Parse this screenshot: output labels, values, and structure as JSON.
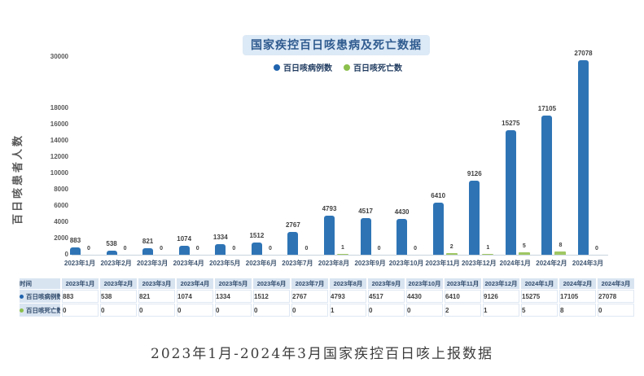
{
  "chart": {
    "title": "国家疾控百日咳患病及死亡数据",
    "y_axis_title": "百日咳患者人数",
    "legend": [
      {
        "label": "百日咳病例数",
        "color": "#1F63AE"
      },
      {
        "label": "百日咳死亡数",
        "color": "#8CC04D"
      }
    ]
  },
  "chart_data": {
    "type": "bar",
    "title": "国家疾控百日咳患病及死亡数据",
    "categories": [
      "2023年1月",
      "2023年2月",
      "2023年3月",
      "2023年4月",
      "2023年5月",
      "2023年6月",
      "2023年7月",
      "2023年8月",
      "2023年9月",
      "2023年10月",
      "2023年11月",
      "2023年12月",
      "2024年1月",
      "2024年2月",
      "2024年3月"
    ],
    "series": [
      {
        "name": "百日咳病例数",
        "color": "#2E74B5",
        "values": [
          883,
          538,
          821,
          1074,
          1334,
          1512,
          2767,
          4793,
          4517,
          4430,
          6410,
          9126,
          15275,
          17105,
          27078
        ]
      },
      {
        "name": "百日咳死亡数",
        "color": "#9FC763",
        "values": [
          0,
          0,
          0,
          0,
          0,
          0,
          0,
          1,
          0,
          0,
          2,
          1,
          5,
          8,
          0
        ]
      }
    ],
    "ylabel": "百日咳患者人数",
    "xlabel": "",
    "y_ticks": [
      0,
      2000,
      4000,
      6000,
      8000,
      10000,
      12000,
      14000,
      16000,
      18000,
      30000
    ],
    "ylim": [
      0,
      30000
    ],
    "grid": false,
    "legend_position": "top",
    "axis_note": "y axis compressed above 18000"
  },
  "table": {
    "corner_label": "时间",
    "rows": [
      {
        "label": "百日咳病例数",
        "dot_color": "#1F63AE",
        "values": [
          "883",
          "538",
          "821",
          "1074",
          "1334",
          "1512",
          "2767",
          "4793",
          "4517",
          "4430",
          "6410",
          "9126",
          "15275",
          "17105",
          "27078"
        ]
      },
      {
        "label": "百日咳死亡数",
        "dot_color": "#8CC04D",
        "values": [
          "0",
          "0",
          "0",
          "0",
          "0",
          "0",
          "0",
          "1",
          "0",
          "0",
          "2",
          "1",
          "5",
          "8",
          "0"
        ]
      }
    ]
  },
  "caption": "2023年1月-2024年3月国家疾控百日咳上报数据"
}
